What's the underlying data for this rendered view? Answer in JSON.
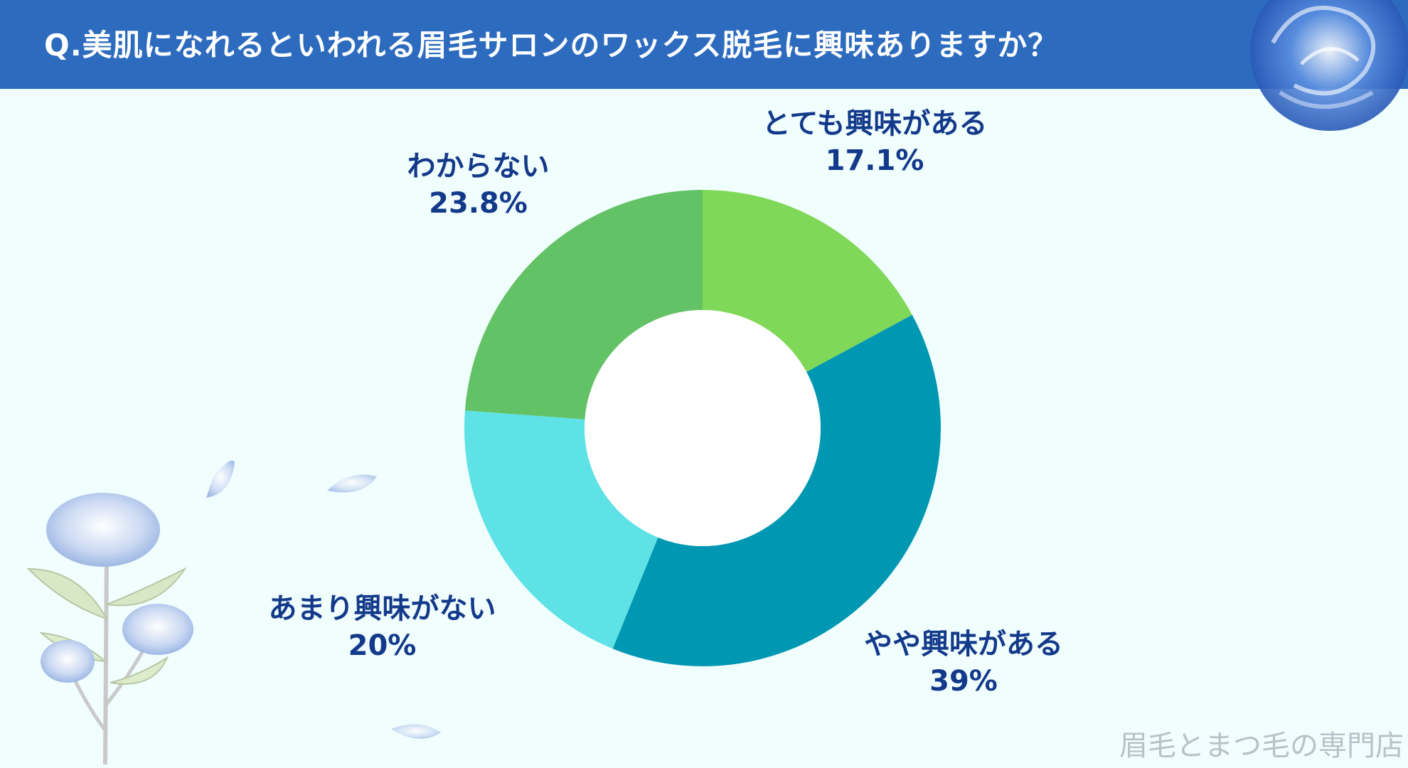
{
  "title": "Q.美肌になれるといわれる眉毛サロンのワックス脱毛に興味ありますか？",
  "watermark": "眉毛とまつ毛の専門店",
  "colors": {
    "header": "#2d6bbf",
    "background": "#f0fefe",
    "label_text": "#133a8a"
  },
  "chart_data": {
    "type": "pie",
    "style": "donut",
    "start": "12 o'clock, clockwise",
    "slices": [
      {
        "label": "とても興味がある",
        "value": 17.1,
        "value_label": "17.1%",
        "color": "#7fd857"
      },
      {
        "label": "やや興味がある",
        "value": 39,
        "value_label": "39%",
        "color": "#0097b2"
      },
      {
        "label": "あまり興味がない",
        "value": 20,
        "value_label": "20%",
        "color": "#5ee2e6"
      },
      {
        "label": "わからない",
        "value": 23.8,
        "value_label": "23.8%",
        "color": "#63c265"
      }
    ]
  }
}
